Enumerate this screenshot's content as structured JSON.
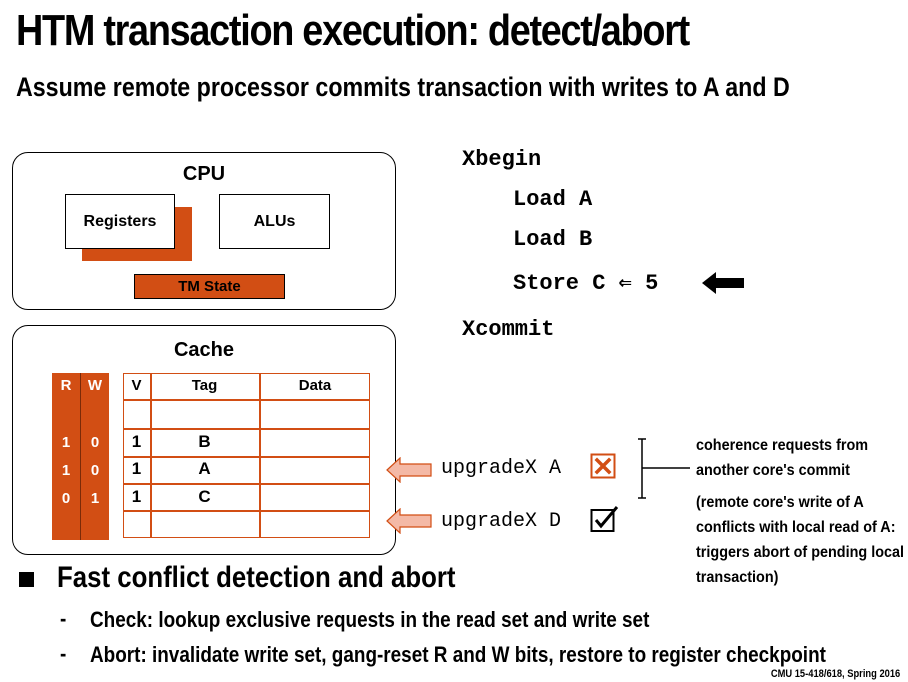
{
  "slide": {
    "title": "HTM transaction execution: detect/abort",
    "subtitle": "Assume remote processor commits transaction with writes to A and D"
  },
  "cpu": {
    "label": "CPU",
    "registers": "Registers",
    "alus": "ALUs",
    "tm_state": "TM State"
  },
  "cache": {
    "label": "Cache",
    "rw_headers": [
      "R",
      "W"
    ],
    "col_headers": [
      "V",
      "Tag",
      "Data"
    ],
    "rows": [
      {
        "r": "",
        "w": "",
        "v": "",
        "tag": ""
      },
      {
        "r": "1",
        "w": "0",
        "v": "1",
        "tag": "B"
      },
      {
        "r": "1",
        "w": "0",
        "v": "1",
        "tag": "A"
      },
      {
        "r": "0",
        "w": "1",
        "v": "1",
        "tag": "C"
      },
      {
        "r": "",
        "w": "",
        "v": "",
        "tag": ""
      }
    ]
  },
  "code": {
    "begin": "Xbegin",
    "line1": "Load A",
    "line2": "Load B",
    "line3": "Store C ⇐ 5",
    "commit": "Xcommit"
  },
  "requests": [
    {
      "label": "upgradeX A",
      "status": "conflict"
    },
    {
      "label": "upgradeX D",
      "status": "ok"
    }
  ],
  "notes": {
    "coherence": "coherence requests from another core's commit",
    "explanation": "(remote core's write of A conflicts with local read of A: triggers abort of pending local transaction)"
  },
  "bullets": {
    "main": "Fast conflict detection and abort",
    "subs": [
      "Check: lookup exclusive requests in the read set and write set",
      "Abort: invalidate write set, gang-reset R and W bits, restore to register checkpoint"
    ]
  },
  "footer": "CMU 15-418/618, Spring 2016",
  "colors": {
    "accent": "#d24e14",
    "arrow_fill": "#f4b9a6",
    "conflict": "#d24e14"
  }
}
